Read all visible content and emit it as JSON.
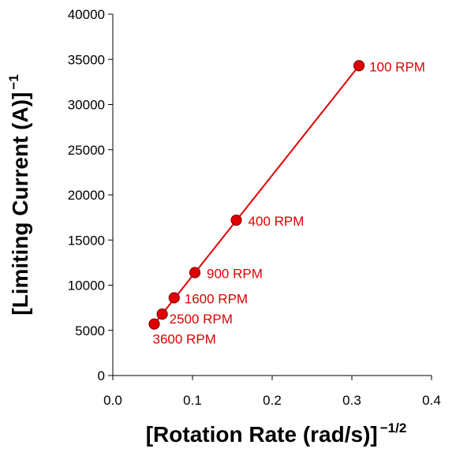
{
  "chart_data": {
    "type": "scatter",
    "title": "",
    "xlabel": "[Rotation Rate (rad/s)]",
    "xlabel_exponent": "−1/2",
    "ylabel": "[Limiting Current (A)]",
    "ylabel_exponent": "−1",
    "xlim": [
      0.0,
      0.4
    ],
    "ylim": [
      0,
      40000
    ],
    "x_ticks": [
      0.0,
      0.1,
      0.2,
      0.3,
      0.4
    ],
    "x_tick_labels": [
      "0.0",
      "0.1",
      "0.2",
      "0.3",
      "0.4"
    ],
    "y_ticks": [
      0,
      5000,
      10000,
      15000,
      20000,
      25000,
      30000,
      35000,
      40000
    ],
    "y_tick_labels": [
      "0",
      "5000",
      "10000",
      "15000",
      "20000",
      "25000",
      "30000",
      "35000",
      "40000"
    ],
    "grid": false,
    "series_color": "#e00000",
    "marker_edge_color": "#8b0000",
    "points": [
      {
        "label": "100 RPM",
        "x": 0.309,
        "y": 34300
      },
      {
        "label": "400 RPM",
        "x": 0.155,
        "y": 17200
      },
      {
        "label": "900 RPM",
        "x": 0.103,
        "y": 11400
      },
      {
        "label": "1600 RPM",
        "x": 0.077,
        "y": 8600
      },
      {
        "label": "2500 RPM",
        "x": 0.062,
        "y": 6800
      },
      {
        "label": "3600 RPM",
        "x": 0.052,
        "y": 5700
      }
    ],
    "fit_line": {
      "x": [
        0.052,
        0.309
      ],
      "y": [
        5700,
        34300
      ]
    }
  }
}
